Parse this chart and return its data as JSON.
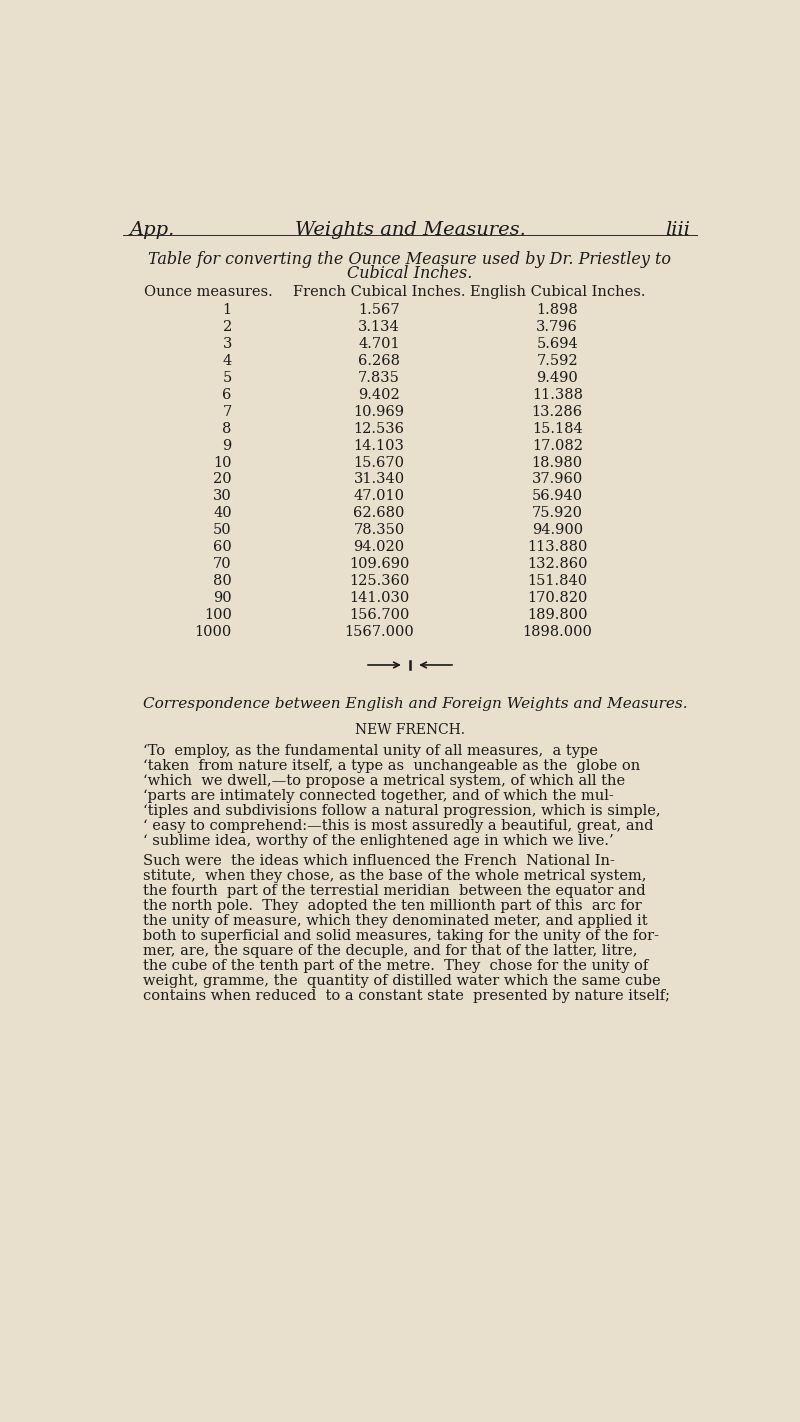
{
  "bg_color": "#e8e0cc",
  "header_left": "App.",
  "header_center": "Weights and Measures.",
  "header_right": "liii",
  "table_title_line1": "Table for converting the Ounce Measure used by Dr. Priestley to",
  "table_title_line2": "Cubical Inches.",
  "col_headers": [
    "Ounce measures.",
    "French Cubical Inches.",
    "English Cubical Inches."
  ],
  "table_data": [
    [
      "1",
      "1.567",
      "1.898"
    ],
    [
      "2",
      "3.134",
      "3.796"
    ],
    [
      "3",
      "4.701",
      "5.694"
    ],
    [
      "4",
      "6.268",
      "7.592"
    ],
    [
      "5",
      "7.835",
      "9.490"
    ],
    [
      "6",
      "9.402",
      "11.388"
    ],
    [
      "7",
      "10.969",
      "13.286"
    ],
    [
      "8",
      "12.536",
      "15.184"
    ],
    [
      "9",
      "14.103",
      "17.082"
    ],
    [
      "10",
      "15.670",
      "18.980"
    ],
    [
      "20",
      "31.340",
      "37.960"
    ],
    [
      "30",
      "47.010",
      "56.940"
    ],
    [
      "40",
      "62.680",
      "75.920"
    ],
    [
      "50",
      "78.350",
      "94.900"
    ],
    [
      "60",
      "94.020",
      "113.880"
    ],
    [
      "70",
      "109.690",
      "132.860"
    ],
    [
      "80",
      "125.360",
      "151.840"
    ],
    [
      "90",
      "141.030",
      "170.820"
    ],
    [
      "100",
      "156.700",
      "189.800"
    ],
    [
      "1000",
      "1567.000",
      "1898.000"
    ]
  ],
  "section_title": "Correspondence between English and Foreign Weights and Measures.",
  "subsection_title": "NEW FRENCH.",
  "paragraph1_lines": [
    "‘To  employ, as the fundamental unity of all measures,  a type",
    "‘taken  from nature itself, a type as  unchangeable as the  globe on",
    "‘which  we dwell,—to propose a metrical system, of which all the",
    "‘parts are intimately connected together, and of which the mul-",
    "‘tiples and subdivisions follow a natural progression, which is simple,",
    "‘ easy to comprehend:—this is most assuredly a beautiful, great, and",
    "‘ sublime idea, worthy of the enlightened age in which we live.’"
  ],
  "paragraph2_lines": [
    "Such were  the ideas which influenced the French  National In-",
    "stitute,  when they chose, as the base of the whole metrical system,",
    "the fourth  part of the terrestial meridian  between the equator and",
    "the north pole.  They  adopted the ten millionth part of this  arc for",
    "the unity of measure, which they denominated meter, and applied it",
    "both to superficial and solid measures, taking for the unity of the for-",
    "mer, are, the square of the decuple, and for that of the latter, litre,",
    "the cube of the tenth part of the metre.  They  chose for the unity of",
    "weight, gramme, the  quantity of distilled water which the same cube",
    "contains when reduced  to a constant state  presented by nature itself;"
  ]
}
